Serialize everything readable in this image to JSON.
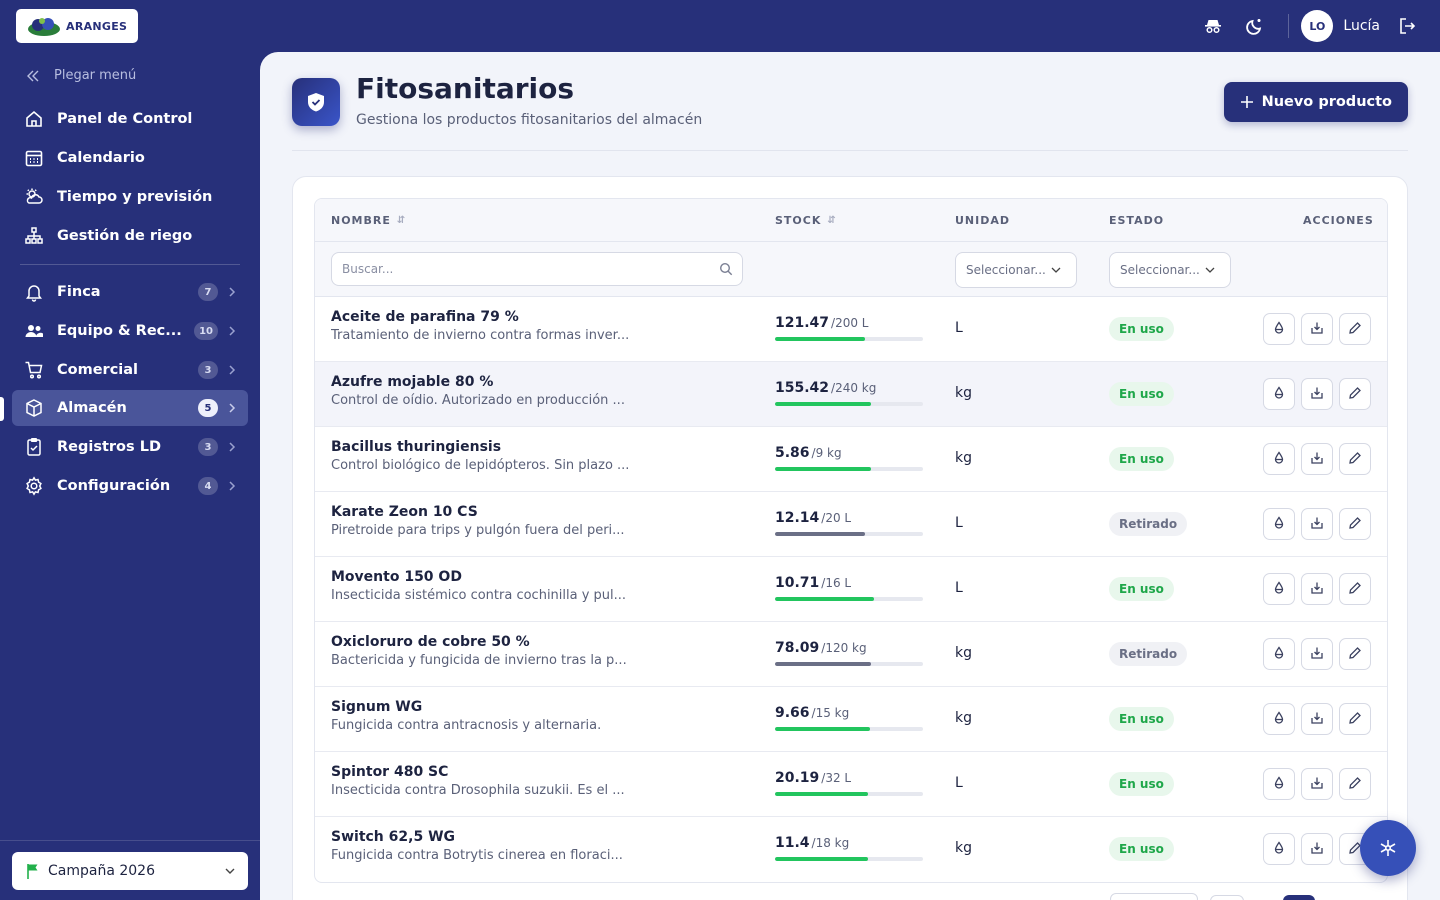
{
  "app": {
    "logo_text": "ARANGES",
    "user_initials": "LO",
    "user_name": "Lucía"
  },
  "sidebar": {
    "collapse_label": "Plegar menú",
    "items": [
      {
        "label": "Panel de Control",
        "icon": "home-icon"
      },
      {
        "label": "Calendario",
        "icon": "calendar-icon"
      },
      {
        "label": "Tiempo y previsión",
        "icon": "weather-icon"
      },
      {
        "label": "Gestión de riego",
        "icon": "irrigation-icon"
      },
      {
        "label": "Finca",
        "badge": "7",
        "icon": "bell-icon"
      },
      {
        "label": "Equipo & Rec...",
        "badge": "10",
        "icon": "team-icon"
      },
      {
        "label": "Comercial",
        "badge": "3",
        "icon": "cart-icon"
      },
      {
        "label": "Almacén",
        "badge": "5",
        "icon": "box-icon",
        "active": true
      },
      {
        "label": "Registros LD",
        "badge": "3",
        "icon": "clipboard-icon"
      },
      {
        "label": "Configuración",
        "badge": "4",
        "icon": "settings-icon"
      }
    ],
    "campaign_label": "Campaña 2026"
  },
  "page": {
    "title": "Fitosanitarios",
    "subtitle": "Gestiona los productos fitosanitarios del almacén",
    "new_button": "Nuevo producto"
  },
  "table": {
    "headers": {
      "name": "NOMBRE",
      "stock": "STOCK",
      "unit": "UNIDAD",
      "status": "ESTADO",
      "actions": "ACCIONES"
    },
    "search_placeholder": "Buscar...",
    "unit_filter": "Seleccionar...",
    "status_filter": "Seleccionar...",
    "rows": [
      {
        "name": "Aceite de parafina 79 %",
        "desc": "Tratamiento de invierno contra formas inver...",
        "stock": "121.47",
        "cap": "/200 L",
        "fill": 0.61,
        "unit": "L",
        "status": "En uso",
        "active": true
      },
      {
        "name": "Azufre mojable 80 %",
        "desc": "Control de oídio. Autorizado en producción ...",
        "stock": "155.42",
        "cap": "/240 kg",
        "fill": 0.65,
        "unit": "kg",
        "status": "En uso",
        "active": true
      },
      {
        "name": "Bacillus thuringiensis",
        "desc": "Control biológico de lepidópteros. Sin plazo ...",
        "stock": "5.86",
        "cap": "/9 kg",
        "fill": 0.65,
        "unit": "kg",
        "status": "En uso",
        "active": true
      },
      {
        "name": "Karate Zeon 10 CS",
        "desc": "Piretroide para trips y pulgón fuera del peri...",
        "stock": "12.14",
        "cap": "/20 L",
        "fill": 0.61,
        "unit": "L",
        "status": "Retirado",
        "active": false
      },
      {
        "name": "Movento 150 OD",
        "desc": "Insecticida sistémico contra cochinilla y pul...",
        "stock": "10.71",
        "cap": "/16 L",
        "fill": 0.67,
        "unit": "L",
        "status": "En uso",
        "active": true
      },
      {
        "name": "Oxicloruro de cobre 50 %",
        "desc": "Bactericida y fungicida de invierno tras la p...",
        "stock": "78.09",
        "cap": "/120 kg",
        "fill": 0.65,
        "unit": "kg",
        "status": "Retirado",
        "active": false
      },
      {
        "name": "Signum WG",
        "desc": "Fungicida contra antracnosis y alternaria.",
        "stock": "9.66",
        "cap": "/15 kg",
        "fill": 0.64,
        "unit": "kg",
        "status": "En uso",
        "active": true
      },
      {
        "name": "Spintor 480 SC",
        "desc": "Insecticida contra Drosophila suzukii. Es el ...",
        "stock": "20.19",
        "cap": "/32 L",
        "fill": 0.63,
        "unit": "L",
        "status": "En uso",
        "active": true
      },
      {
        "name": "Switch 62,5 WG",
        "desc": "Fungicida contra Botrytis cinerea en floraci...",
        "stock": "11.4",
        "cap": "/18 kg",
        "fill": 0.63,
        "unit": "kg",
        "status": "En uso",
        "active": true
      }
    ]
  },
  "colors": {
    "primary": "#27307a",
    "green": "#22c55e",
    "grey_bar": "#6b6f86"
  }
}
